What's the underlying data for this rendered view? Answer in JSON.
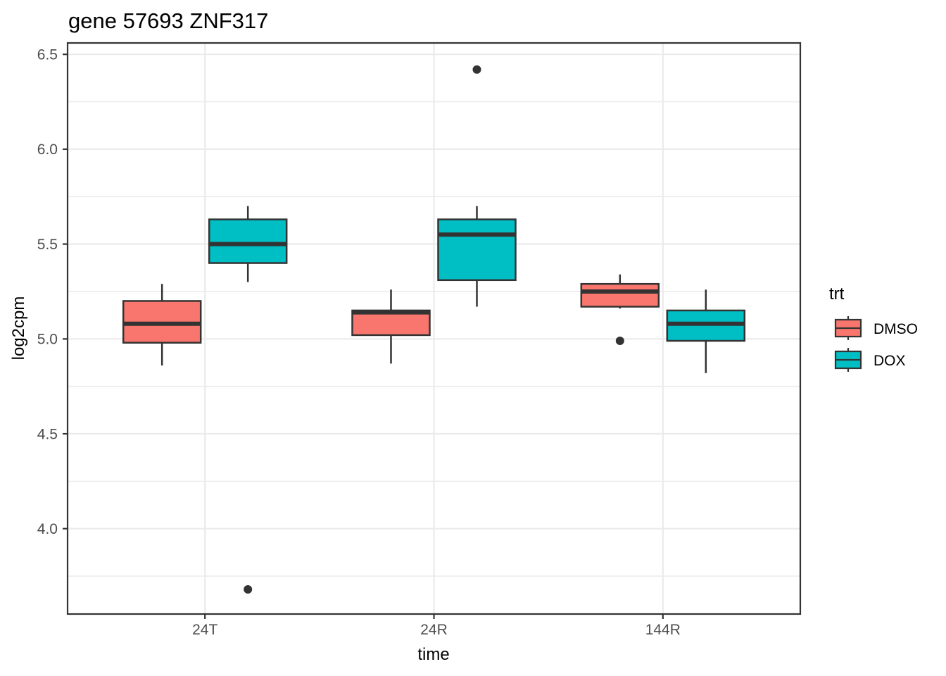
{
  "chart_data": {
    "type": "boxplot",
    "title": "gene 57693 ZNF317",
    "xlabel": "time",
    "ylabel": "log2cpm",
    "categories": [
      "24T",
      "24R",
      "144R"
    ],
    "y_axis": {
      "range": [
        3.55,
        6.56
      ],
      "ticks": [
        {
          "value": 4.0,
          "label": "4.0"
        },
        {
          "value": 4.5,
          "label": "4.5"
        },
        {
          "value": 5.0,
          "label": "5.0"
        },
        {
          "value": 5.5,
          "label": "5.5"
        },
        {
          "value": 6.0,
          "label": "6.0"
        },
        {
          "value": 6.5,
          "label": "6.5"
        }
      ],
      "minor_gridlines": [
        3.75,
        4.25,
        4.75,
        5.25,
        5.75,
        6.25
      ]
    },
    "series": [
      {
        "name": "DMSO",
        "color": "#F8766D",
        "boxes": [
          {
            "category": "24T",
            "whisker_low": 4.86,
            "q1": 4.98,
            "median": 5.08,
            "q3": 5.2,
            "whisker_high": 5.29,
            "outliers": []
          },
          {
            "category": "24R",
            "whisker_low": 4.87,
            "q1": 5.02,
            "median": 5.14,
            "q3": 5.15,
            "whisker_high": 5.26,
            "outliers": []
          },
          {
            "category": "144R",
            "whisker_low": 5.16,
            "q1": 5.17,
            "median": 5.25,
            "q3": 5.29,
            "whisker_high": 5.34,
            "outliers": [
              4.99
            ]
          }
        ]
      },
      {
        "name": "DOX",
        "color": "#00BFC4",
        "boxes": [
          {
            "category": "24T",
            "whisker_low": 5.3,
            "q1": 5.4,
            "median": 5.5,
            "q3": 5.63,
            "whisker_high": 5.7,
            "outliers": [
              3.68
            ]
          },
          {
            "category": "24R",
            "whisker_low": 5.17,
            "q1": 5.31,
            "median": 5.55,
            "q3": 5.63,
            "whisker_high": 5.7,
            "outliers": [
              6.42
            ]
          },
          {
            "category": "144R",
            "whisker_low": 4.82,
            "q1": 4.99,
            "median": 5.08,
            "q3": 5.15,
            "whisker_high": 5.26,
            "outliers": []
          }
        ]
      }
    ],
    "legend": {
      "title": "trt",
      "position": "right",
      "entries": [
        {
          "label": "DMSO",
          "color": "#F8766D"
        },
        {
          "label": "DOX",
          "color": "#00BFC4"
        }
      ]
    },
    "style": {
      "grid_color": "#EBEBEB",
      "panel_border_color": "#333333",
      "box_stroke_color": "#333333",
      "outlier_color": "#333333",
      "tick_mark_color": "#333333",
      "tick_label_color": "#4D4D4D"
    }
  }
}
